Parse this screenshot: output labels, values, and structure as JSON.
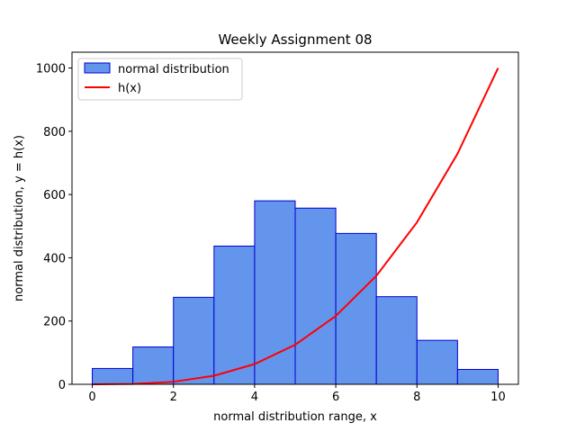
{
  "chart_data": {
    "type": "bar",
    "title": "Weekly Assignment 08",
    "xlabel": "normal distribution range, x",
    "ylabel": "normal distribution, y = h(x)",
    "xlim": [
      -0.5,
      10.5
    ],
    "ylim": [
      0,
      1050
    ],
    "x_ticks": [
      0,
      2,
      4,
      6,
      8,
      10
    ],
    "y_ticks": [
      0,
      200,
      400,
      600,
      800,
      1000
    ],
    "histogram": {
      "name": "normal distribution",
      "bin_edges": [
        0,
        1,
        2,
        3,
        4,
        5,
        6,
        7,
        8,
        9,
        10
      ],
      "counts": [
        50,
        118,
        275,
        437,
        580,
        557,
        477,
        277,
        139,
        47
      ],
      "fill": "#6495ED",
      "edge": "#0000CD"
    },
    "line": {
      "name": "h(x)",
      "x": [
        0,
        1,
        2,
        3,
        4,
        5,
        6,
        7,
        8,
        9,
        10
      ],
      "y": [
        0,
        1,
        8,
        27,
        64,
        125,
        216,
        343,
        512,
        729,
        1000
      ],
      "color": "#FF0000"
    },
    "legend": {
      "placement": "top-left",
      "entries": [
        "normal distribution",
        "h(x)"
      ]
    },
    "grid": false
  }
}
